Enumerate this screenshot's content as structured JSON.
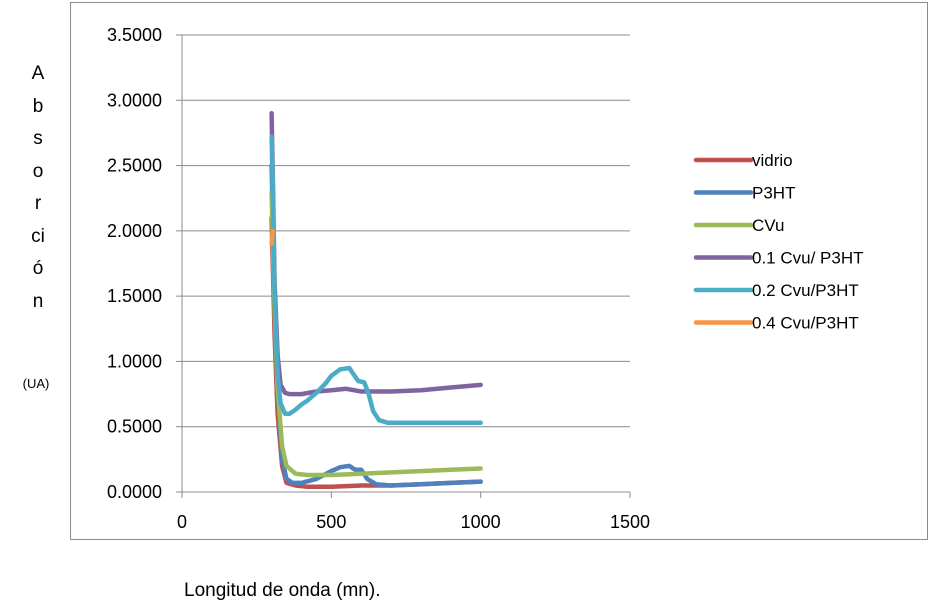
{
  "chart_data": {
    "type": "line",
    "title": "",
    "xlabel": "Longitud de onda (mn).",
    "ylabel": "Absorción",
    "yunit": "(UA)",
    "xlim": [
      0,
      1500
    ],
    "ylim": [
      0,
      3.5
    ],
    "xticks": [
      0,
      500,
      1000,
      1500
    ],
    "yticks": [
      "0.0000",
      "0.5000",
      "1.0000",
      "1.5000",
      "2.0000",
      "2.5000",
      "3.0000",
      "3.5000"
    ],
    "grid": "horizontal",
    "legend_position": "right",
    "series": [
      {
        "name": "vidrio",
        "color": "#c0504d",
        "x": [
          300,
          310,
          320,
          335,
          350,
          380,
          420,
          500,
          600,
          700,
          800,
          900,
          1000
        ],
        "y": [
          2.1,
          1.2,
          0.6,
          0.2,
          0.07,
          0.05,
          0.04,
          0.04,
          0.05,
          0.05,
          0.06,
          0.07,
          0.08
        ]
      },
      {
        "name": "P3HT",
        "color": "#4f81bd",
        "x": [
          300,
          310,
          320,
          335,
          350,
          370,
          400,
          450,
          500,
          530,
          560,
          580,
          600,
          620,
          650,
          700,
          800,
          900,
          1000
        ],
        "y": [
          2.5,
          1.5,
          0.8,
          0.25,
          0.1,
          0.07,
          0.07,
          0.1,
          0.16,
          0.19,
          0.2,
          0.17,
          0.17,
          0.1,
          0.06,
          0.05,
          0.06,
          0.07,
          0.08
        ]
      },
      {
        "name": "CVu",
        "color": "#9bbb59",
        "x": [
          300,
          310,
          320,
          335,
          350,
          380,
          420,
          500,
          600,
          700,
          800,
          900,
          1000
        ],
        "y": [
          2.3,
          1.4,
          0.8,
          0.35,
          0.2,
          0.14,
          0.13,
          0.13,
          0.14,
          0.15,
          0.16,
          0.17,
          0.18
        ]
      },
      {
        "name": "0.1 Cvu/ P3HT",
        "color": "#8064a2",
        "x": [
          300,
          305,
          310,
          320,
          330,
          345,
          360,
          400,
          450,
          500,
          550,
          600,
          650,
          700,
          800,
          900,
          1000
        ],
        "y": [
          2.9,
          2.3,
          1.6,
          1.05,
          0.82,
          0.76,
          0.75,
          0.75,
          0.77,
          0.78,
          0.79,
          0.77,
          0.77,
          0.77,
          0.78,
          0.8,
          0.82
        ]
      },
      {
        "name": "0.2 Cvu/P3HT",
        "color": "#4bacc6",
        "x": [
          300,
          305,
          310,
          320,
          330,
          345,
          360,
          380,
          400,
          420,
          450,
          480,
          500,
          530,
          560,
          575,
          590,
          610,
          625,
          640,
          660,
          690,
          720,
          800,
          900,
          1000
        ],
        "y": [
          2.72,
          2.2,
          1.5,
          0.9,
          0.68,
          0.6,
          0.6,
          0.63,
          0.67,
          0.7,
          0.76,
          0.83,
          0.89,
          0.94,
          0.95,
          0.9,
          0.85,
          0.84,
          0.75,
          0.62,
          0.55,
          0.53,
          0.53,
          0.53,
          0.53,
          0.53
        ]
      },
      {
        "name": "0.4 Cvu/P3HT",
        "color": "#f79646",
        "x": [
          300,
          302,
          304
        ],
        "y": [
          1.9,
          1.95,
          2.0
        ]
      }
    ]
  }
}
